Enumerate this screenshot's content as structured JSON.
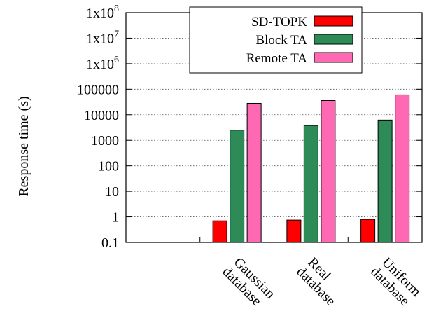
{
  "chart_data": {
    "type": "bar",
    "title": "",
    "xlabel": "",
    "ylabel": "Response time (s)",
    "yscale": "log",
    "ylim": [
      0.1,
      100000000
    ],
    "grid": true,
    "legend_position": "top-right",
    "categories": [
      "Gaussian database",
      "Real database",
      "Uniform database"
    ],
    "category_lines": [
      [
        "Gaussian",
        "database"
      ],
      [
        "Real",
        "database"
      ],
      [
        "Uniform",
        "database"
      ]
    ],
    "y_ticks": [
      {
        "value": 0.1,
        "label": "0.1"
      },
      {
        "value": 1,
        "label": "1"
      },
      {
        "value": 10,
        "label": "10"
      },
      {
        "value": 100,
        "label": "100"
      },
      {
        "value": 1000,
        "label": "1000"
      },
      {
        "value": 10000,
        "label": "10000"
      },
      {
        "value": 100000,
        "label": "100000"
      },
      {
        "value": 1000000,
        "label": "1x10",
        "exp": "6"
      },
      {
        "value": 10000000,
        "label": "1x10",
        "exp": "7"
      },
      {
        "value": 100000000,
        "label": "1x10",
        "exp": "8"
      }
    ],
    "series": [
      {
        "name": "SD-TOPK",
        "color": "#ff0000",
        "values": [
          0.7,
          0.75,
          0.8
        ]
      },
      {
        "name": "Block TA",
        "color": "#2e8b57",
        "values": [
          2500,
          3800,
          6200
        ]
      },
      {
        "name": "Remote TA",
        "color": "#ff69b4",
        "values": [
          28000,
          36000,
          60000
        ]
      }
    ]
  }
}
